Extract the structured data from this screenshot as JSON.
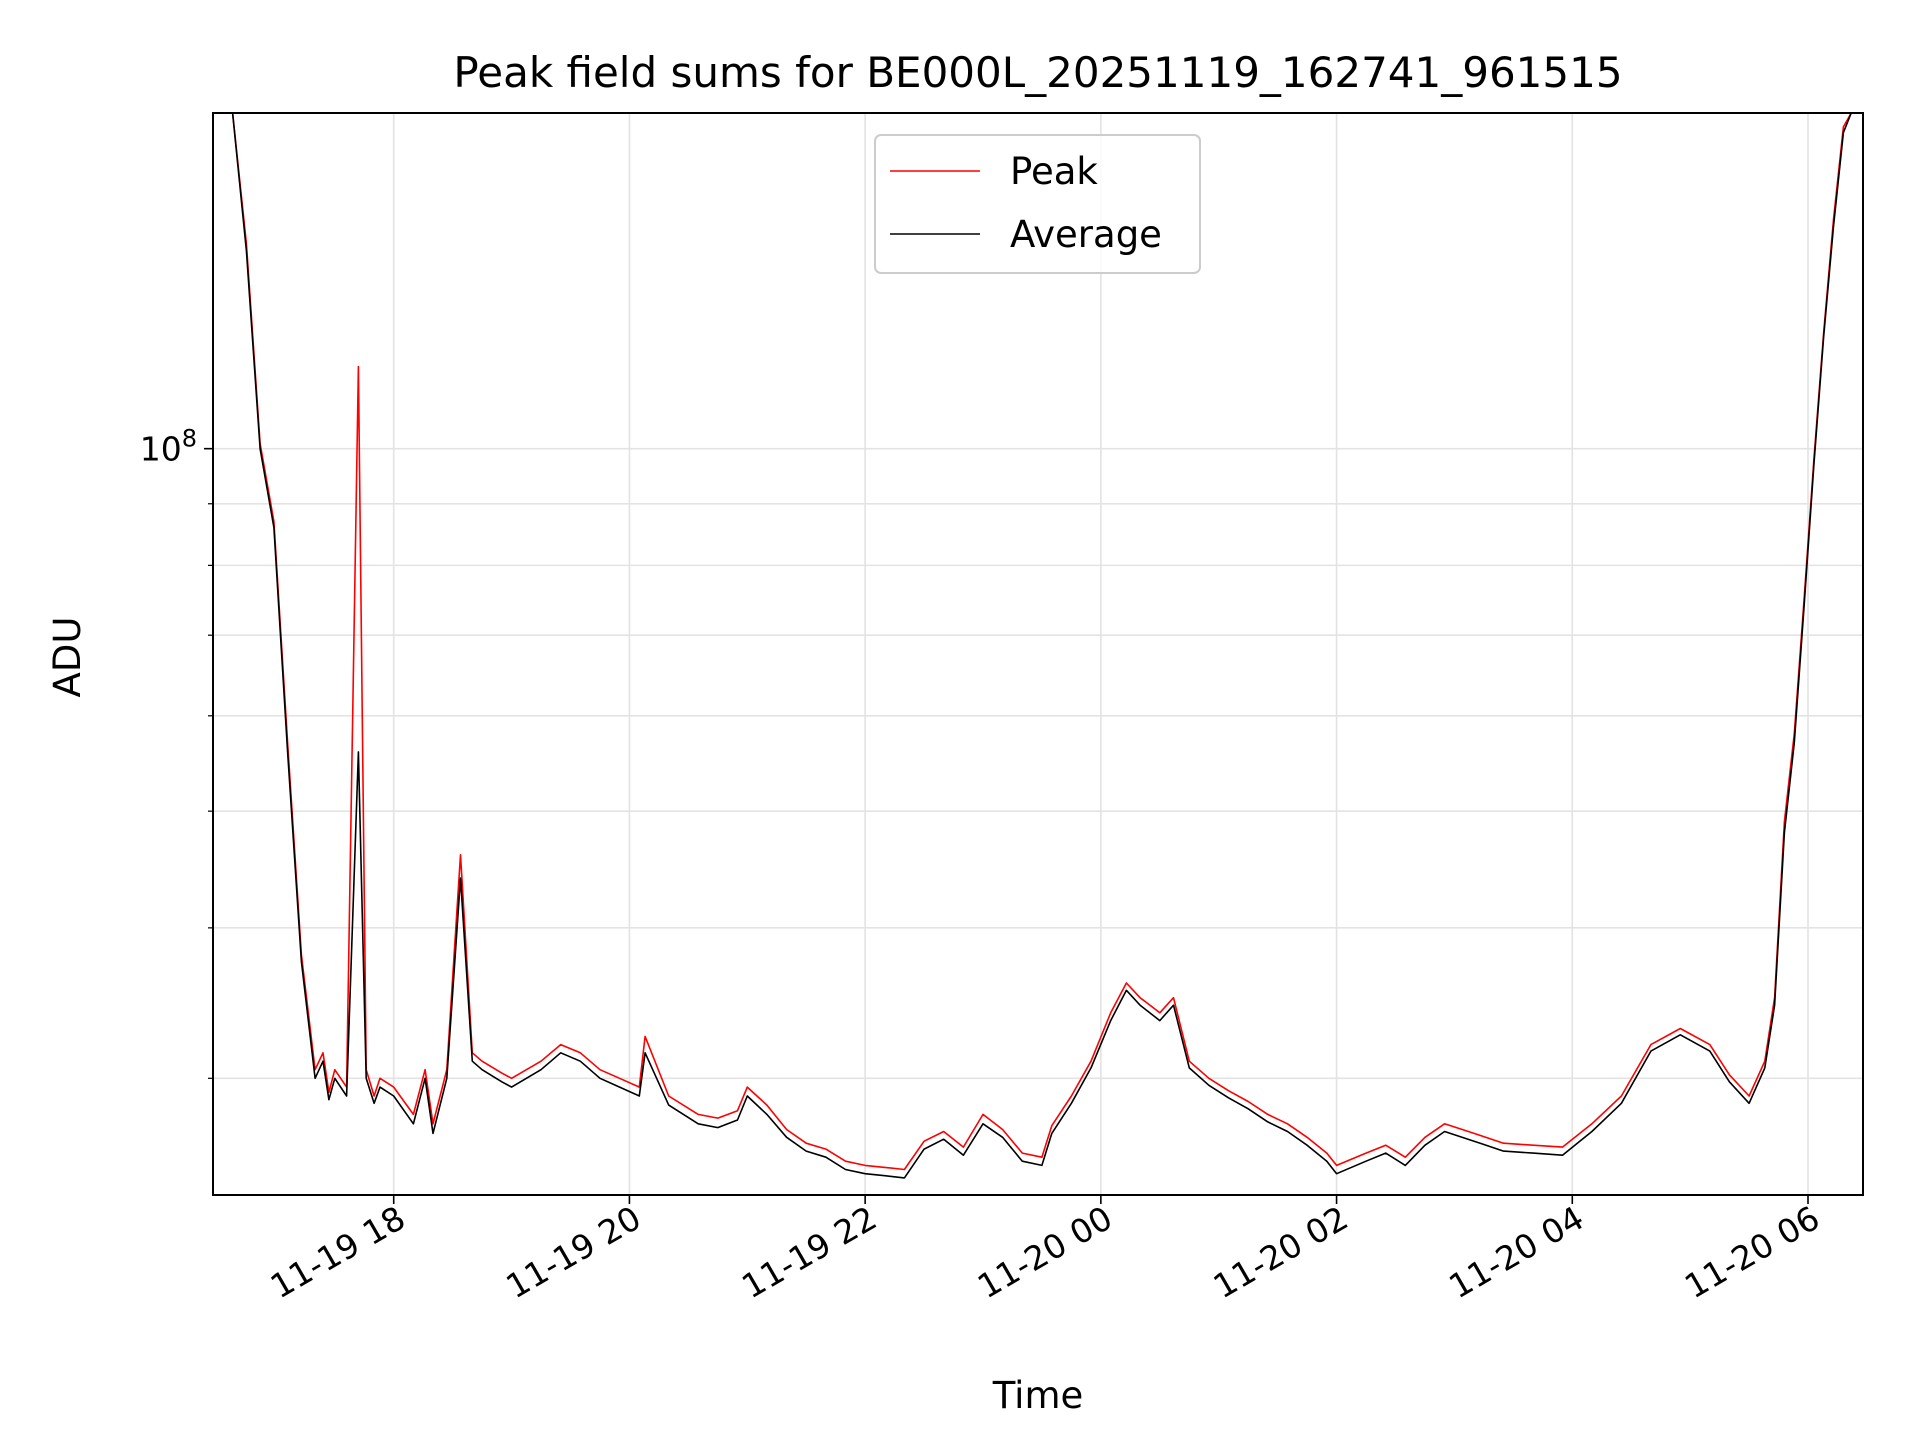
{
  "chart_data": {
    "type": "line",
    "title": "Peak field sums for BE000L_20251119_162741_961515",
    "xlabel": "Time",
    "ylabel": "ADU",
    "yscale": "log",
    "xlim": [
      "2025-11-19 16:28",
      "2025-11-20 06:28"
    ],
    "ylim": [
      24000000,
      190000000
    ],
    "x_ticks": [
      "11-19 18",
      "11-19 20",
      "11-19 22",
      "11-20 00",
      "11-20 02",
      "11-20 04",
      "11-20 06"
    ],
    "y_ticks": [
      "10^8"
    ],
    "grid": true,
    "legend_position": "top-center",
    "colors": {
      "Peak": "#ff0000",
      "Average": "#000000"
    },
    "series": [
      {
        "name": "Peak",
        "x": [
          "2025-11-19 16:38",
          "2025-11-19 16:45",
          "2025-11-19 16:52",
          "2025-11-19 16:59",
          "2025-11-19 17:06",
          "2025-11-19 17:13",
          "2025-11-19 17:20",
          "2025-11-19 17:24",
          "2025-11-19 17:27",
          "2025-11-19 17:30",
          "2025-11-19 17:36",
          "2025-11-19 17:42",
          "2025-11-19 17:46",
          "2025-11-19 17:50",
          "2025-11-19 17:53",
          "2025-11-19 18:00",
          "2025-11-19 18:10",
          "2025-11-19 18:16",
          "2025-11-19 18:20",
          "2025-11-19 18:27",
          "2025-11-19 18:34",
          "2025-11-19 18:40",
          "2025-11-19 18:45",
          "2025-11-19 18:55",
          "2025-11-19 19:00",
          "2025-11-19 19:15",
          "2025-11-19 19:25",
          "2025-11-19 19:35",
          "2025-11-19 19:45",
          "2025-11-19 19:55",
          "2025-11-19 20:05",
          "2025-11-19 20:08",
          "2025-11-19 20:20",
          "2025-11-19 20:35",
          "2025-11-19 20:45",
          "2025-11-19 20:55",
          "2025-11-19 21:00",
          "2025-11-19 21:10",
          "2025-11-19 21:20",
          "2025-11-19 21:30",
          "2025-11-19 21:40",
          "2025-11-19 21:50",
          "2025-11-19 22:00",
          "2025-11-19 22:10",
          "2025-11-19 22:20",
          "2025-11-19 22:30",
          "2025-11-19 22:40",
          "2025-11-19 22:50",
          "2025-11-19 23:00",
          "2025-11-19 23:10",
          "2025-11-19 23:20",
          "2025-11-19 23:30",
          "2025-11-19 23:35",
          "2025-11-19 23:45",
          "2025-11-19 23:55",
          "2025-11-20 00:05",
          "2025-11-20 00:13",
          "2025-11-20 00:20",
          "2025-11-20 00:30",
          "2025-11-20 00:37",
          "2025-11-20 00:45",
          "2025-11-20 00:55",
          "2025-11-20 01:05",
          "2025-11-20 01:15",
          "2025-11-20 01:25",
          "2025-11-20 01:35",
          "2025-11-20 01:45",
          "2025-11-20 01:55",
          "2025-11-20 02:00",
          "2025-11-20 02:15",
          "2025-11-20 02:25",
          "2025-11-20 02:35",
          "2025-11-20 02:45",
          "2025-11-20 02:55",
          "2025-11-20 03:10",
          "2025-11-20 03:25",
          "2025-11-20 03:40",
          "2025-11-20 03:55",
          "2025-11-20 04:10",
          "2025-11-20 04:25",
          "2025-11-20 04:40",
          "2025-11-20 04:55",
          "2025-11-20 05:10",
          "2025-11-20 05:20",
          "2025-11-20 05:30",
          "2025-11-20 05:38",
          "2025-11-20 05:43",
          "2025-11-20 05:48",
          "2025-11-20 05:53",
          "2025-11-20 05:58",
          "2025-11-20 06:03",
          "2025-11-20 06:08",
          "2025-11-20 06:13",
          "2025-11-20 06:18",
          "2025-11-20 06:22"
        ],
        "values": [
          190000000,
          148000000,
          101000000,
          87000000,
          57000000,
          38000000,
          30500000,
          31500000,
          29200000,
          30500000,
          29500000,
          117000000,
          30500000,
          29000000,
          30000000,
          29500000,
          28000000,
          30500000,
          27500000,
          30500000,
          46000000,
          31500000,
          31000000,
          30300000,
          30000000,
          31000000,
          32000000,
          31500000,
          30500000,
          30000000,
          29500000,
          32500000,
          29000000,
          28000000,
          27800000,
          28200000,
          29500000,
          28500000,
          27200000,
          26500000,
          26200000,
          25600000,
          25400000,
          25300000,
          25200000,
          26600000,
          27100000,
          26300000,
          28000000,
          27200000,
          26000000,
          25800000,
          27400000,
          29000000,
          31000000,
          34000000,
          36000000,
          35000000,
          34000000,
          35000000,
          31000000,
          30000000,
          29300000,
          28700000,
          28000000,
          27500000,
          26800000,
          26000000,
          25400000,
          26000000,
          26400000,
          25800000,
          26800000,
          27500000,
          27000000,
          26500000,
          26400000,
          26300000,
          27500000,
          29000000,
          32000000,
          33000000,
          32000000,
          30200000,
          29000000,
          31000000,
          35000000,
          49000000,
          58000000,
          75000000,
          98000000,
          125000000,
          155000000,
          185000000,
          190000000
        ]
      },
      {
        "name": "Average",
        "x": [
          "2025-11-19 16:38",
          "2025-11-19 16:45",
          "2025-11-19 16:52",
          "2025-11-19 16:59",
          "2025-11-19 17:06",
          "2025-11-19 17:13",
          "2025-11-19 17:20",
          "2025-11-19 17:24",
          "2025-11-19 17:27",
          "2025-11-19 17:30",
          "2025-11-19 17:36",
          "2025-11-19 17:42",
          "2025-11-19 17:46",
          "2025-11-19 17:50",
          "2025-11-19 17:53",
          "2025-11-19 18:00",
          "2025-11-19 18:10",
          "2025-11-19 18:16",
          "2025-11-19 18:20",
          "2025-11-19 18:27",
          "2025-11-19 18:34",
          "2025-11-19 18:40",
          "2025-11-19 18:45",
          "2025-11-19 18:55",
          "2025-11-19 19:00",
          "2025-11-19 19:15",
          "2025-11-19 19:25",
          "2025-11-19 19:35",
          "2025-11-19 19:45",
          "2025-11-19 19:55",
          "2025-11-19 20:05",
          "2025-11-19 20:08",
          "2025-11-19 20:20",
          "2025-11-19 20:35",
          "2025-11-19 20:45",
          "2025-11-19 20:55",
          "2025-11-19 21:00",
          "2025-11-19 21:10",
          "2025-11-19 21:20",
          "2025-11-19 21:30",
          "2025-11-19 21:40",
          "2025-11-19 21:50",
          "2025-11-19 22:00",
          "2025-11-19 22:10",
          "2025-11-19 22:20",
          "2025-11-19 22:30",
          "2025-11-19 22:40",
          "2025-11-19 22:50",
          "2025-11-19 23:00",
          "2025-11-19 23:10",
          "2025-11-19 23:20",
          "2025-11-19 23:30",
          "2025-11-19 23:35",
          "2025-11-19 23:45",
          "2025-11-19 23:55",
          "2025-11-20 00:05",
          "2025-11-20 00:13",
          "2025-11-20 00:20",
          "2025-11-20 00:30",
          "2025-11-20 00:37",
          "2025-11-20 00:45",
          "2025-11-20 00:55",
          "2025-11-20 01:05",
          "2025-11-20 01:15",
          "2025-11-20 01:25",
          "2025-11-20 01:35",
          "2025-11-20 01:45",
          "2025-11-20 01:55",
          "2025-11-20 02:00",
          "2025-11-20 02:15",
          "2025-11-20 02:25",
          "2025-11-20 02:35",
          "2025-11-20 02:45",
          "2025-11-20 02:55",
          "2025-11-20 03:10",
          "2025-11-20 03:25",
          "2025-11-20 03:40",
          "2025-11-20 03:55",
          "2025-11-20 04:10",
          "2025-11-20 04:25",
          "2025-11-20 04:40",
          "2025-11-20 04:55",
          "2025-11-20 05:10",
          "2025-11-20 05:20",
          "2025-11-20 05:30",
          "2025-11-20 05:38",
          "2025-11-20 05:43",
          "2025-11-20 05:48",
          "2025-11-20 05:53",
          "2025-11-20 05:58",
          "2025-11-20 06:03",
          "2025-11-20 06:08",
          "2025-11-20 06:13",
          "2025-11-20 06:18",
          "2025-11-20 06:22"
        ],
        "values": [
          190000000,
          146000000,
          100000000,
          86000000,
          56000000,
          37500000,
          30000000,
          31000000,
          28800000,
          30000000,
          29000000,
          56000000,
          30000000,
          28600000,
          29500000,
          29000000,
          27500000,
          30000000,
          27000000,
          30000000,
          44000000,
          31000000,
          30500000,
          29800000,
          29500000,
          30500000,
          31500000,
          31000000,
          30000000,
          29500000,
          29000000,
          31500000,
          28500000,
          27500000,
          27300000,
          27700000,
          29000000,
          28000000,
          26800000,
          26100000,
          25800000,
          25200000,
          25000000,
          24900000,
          24800000,
          26200000,
          26700000,
          25900000,
          27500000,
          26800000,
          25600000,
          25400000,
          27000000,
          28600000,
          30600000,
          33500000,
          35500000,
          34500000,
          33500000,
          34500000,
          30600000,
          29600000,
          28900000,
          28300000,
          27600000,
          27100000,
          26400000,
          25600000,
          25000000,
          25600000,
          26000000,
          25400000,
          26400000,
          27100000,
          26600000,
          26100000,
          26000000,
          25900000,
          27100000,
          28600000,
          31600000,
          32600000,
          31600000,
          29800000,
          28600000,
          30600000,
          34500000,
          48000000,
          57000000,
          74000000,
          97000000,
          124000000,
          153000000,
          183000000,
          190000000
        ]
      }
    ]
  }
}
